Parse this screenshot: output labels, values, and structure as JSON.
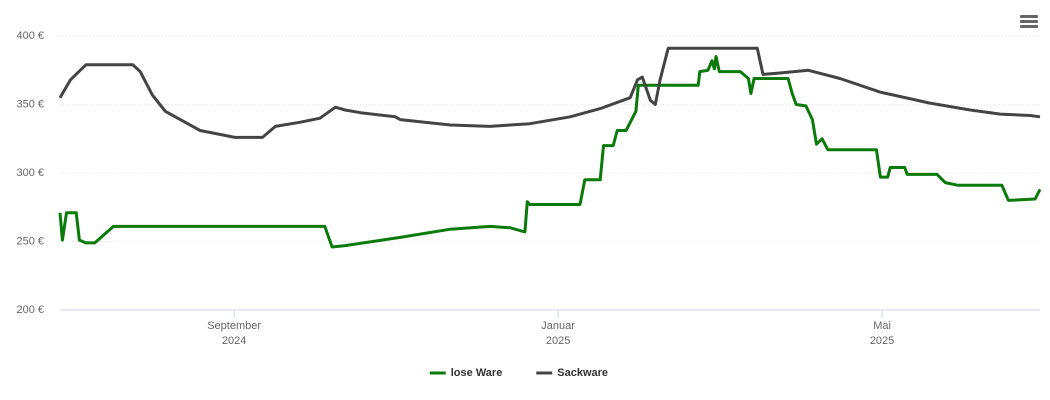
{
  "chart_data": {
    "type": "line",
    "xlim": [
      -2.15,
      9.95
    ],
    "xticks": [
      {
        "value": 0,
        "label": "September\n2024"
      },
      {
        "value": 4,
        "label": "Januar\n2025"
      },
      {
        "value": 8,
        "label": "Mai\n2025"
      }
    ],
    "ylim": [
      200,
      400
    ],
    "yticks": [
      {
        "value": 200,
        "label": "200 €"
      },
      {
        "value": 250,
        "label": "250 €"
      },
      {
        "value": 300,
        "label": "300 €"
      },
      {
        "value": 350,
        "label": "350 €"
      },
      {
        "value": 400,
        "label": "400 €"
      }
    ],
    "grid": true,
    "legend": "bottom",
    "series": [
      {
        "name": "lose Ware",
        "color": "#0a7a0a",
        "x": [
          -2.15,
          -2.12,
          -2.07,
          -1.95,
          -1.91,
          -1.83,
          -1.72,
          -1.49,
          1.12,
          1.21,
          1.37,
          2.05,
          2.67,
          3.16,
          3.41,
          3.59,
          3.62,
          3.65,
          4.27,
          4.33,
          4.4,
          4.52,
          4.56,
          4.68,
          4.73,
          4.84,
          4.96,
          4.99,
          5.73,
          5.75,
          5.85,
          5.9,
          5.93,
          5.95,
          5.99,
          6.25,
          6.35,
          6.38,
          6.42,
          6.84,
          6.89,
          6.94,
          7.06,
          7.14,
          7.19,
          7.26,
          7.33,
          7.93,
          7.98,
          8.07,
          8.1,
          8.28,
          8.31,
          8.68,
          8.78,
          8.94,
          9.48,
          9.56,
          9.89,
          9.95
        ],
        "values": [
          271,
          251,
          271,
          271,
          251,
          249,
          249,
          261,
          261,
          246,
          247,
          253,
          259,
          261,
          260,
          257,
          279,
          277,
          277,
          295,
          295,
          295,
          320,
          320,
          331,
          331,
          345,
          364,
          364,
          374,
          375,
          382,
          376,
          385,
          374,
          374,
          369,
          358,
          369,
          369,
          358,
          350,
          349,
          339,
          321,
          325,
          317,
          317,
          297,
          297,
          304,
          304,
          299,
          299,
          293,
          291,
          291,
          280,
          281,
          288
        ]
      },
      {
        "name": "Sackware",
        "color": "#444444",
        "x": [
          -2.15,
          -2.02,
          -1.83,
          -1.25,
          -1.16,
          -1.01,
          -0.85,
          -0.42,
          0.01,
          0.35,
          0.51,
          0.81,
          1.06,
          1.25,
          1.37,
          1.56,
          1.99,
          2.05,
          2.67,
          3.16,
          3.65,
          4.15,
          4.52,
          4.89,
          4.98,
          5.04,
          5.14,
          5.2,
          5.26,
          5.36,
          6.46,
          6.53,
          6.74,
          7.09,
          7.48,
          7.98,
          8.59,
          9.09,
          9.46,
          9.83,
          9.95
        ],
        "values": [
          355,
          368,
          379,
          379,
          374,
          357,
          345,
          331,
          326,
          326,
          334,
          337,
          340,
          348,
          346,
          344,
          341,
          339,
          335,
          334,
          336,
          341,
          347,
          355,
          368,
          370,
          353,
          350,
          368,
          391,
          391,
          372,
          373,
          375,
          369,
          359,
          351,
          346,
          343,
          342,
          341
        ]
      }
    ]
  }
}
